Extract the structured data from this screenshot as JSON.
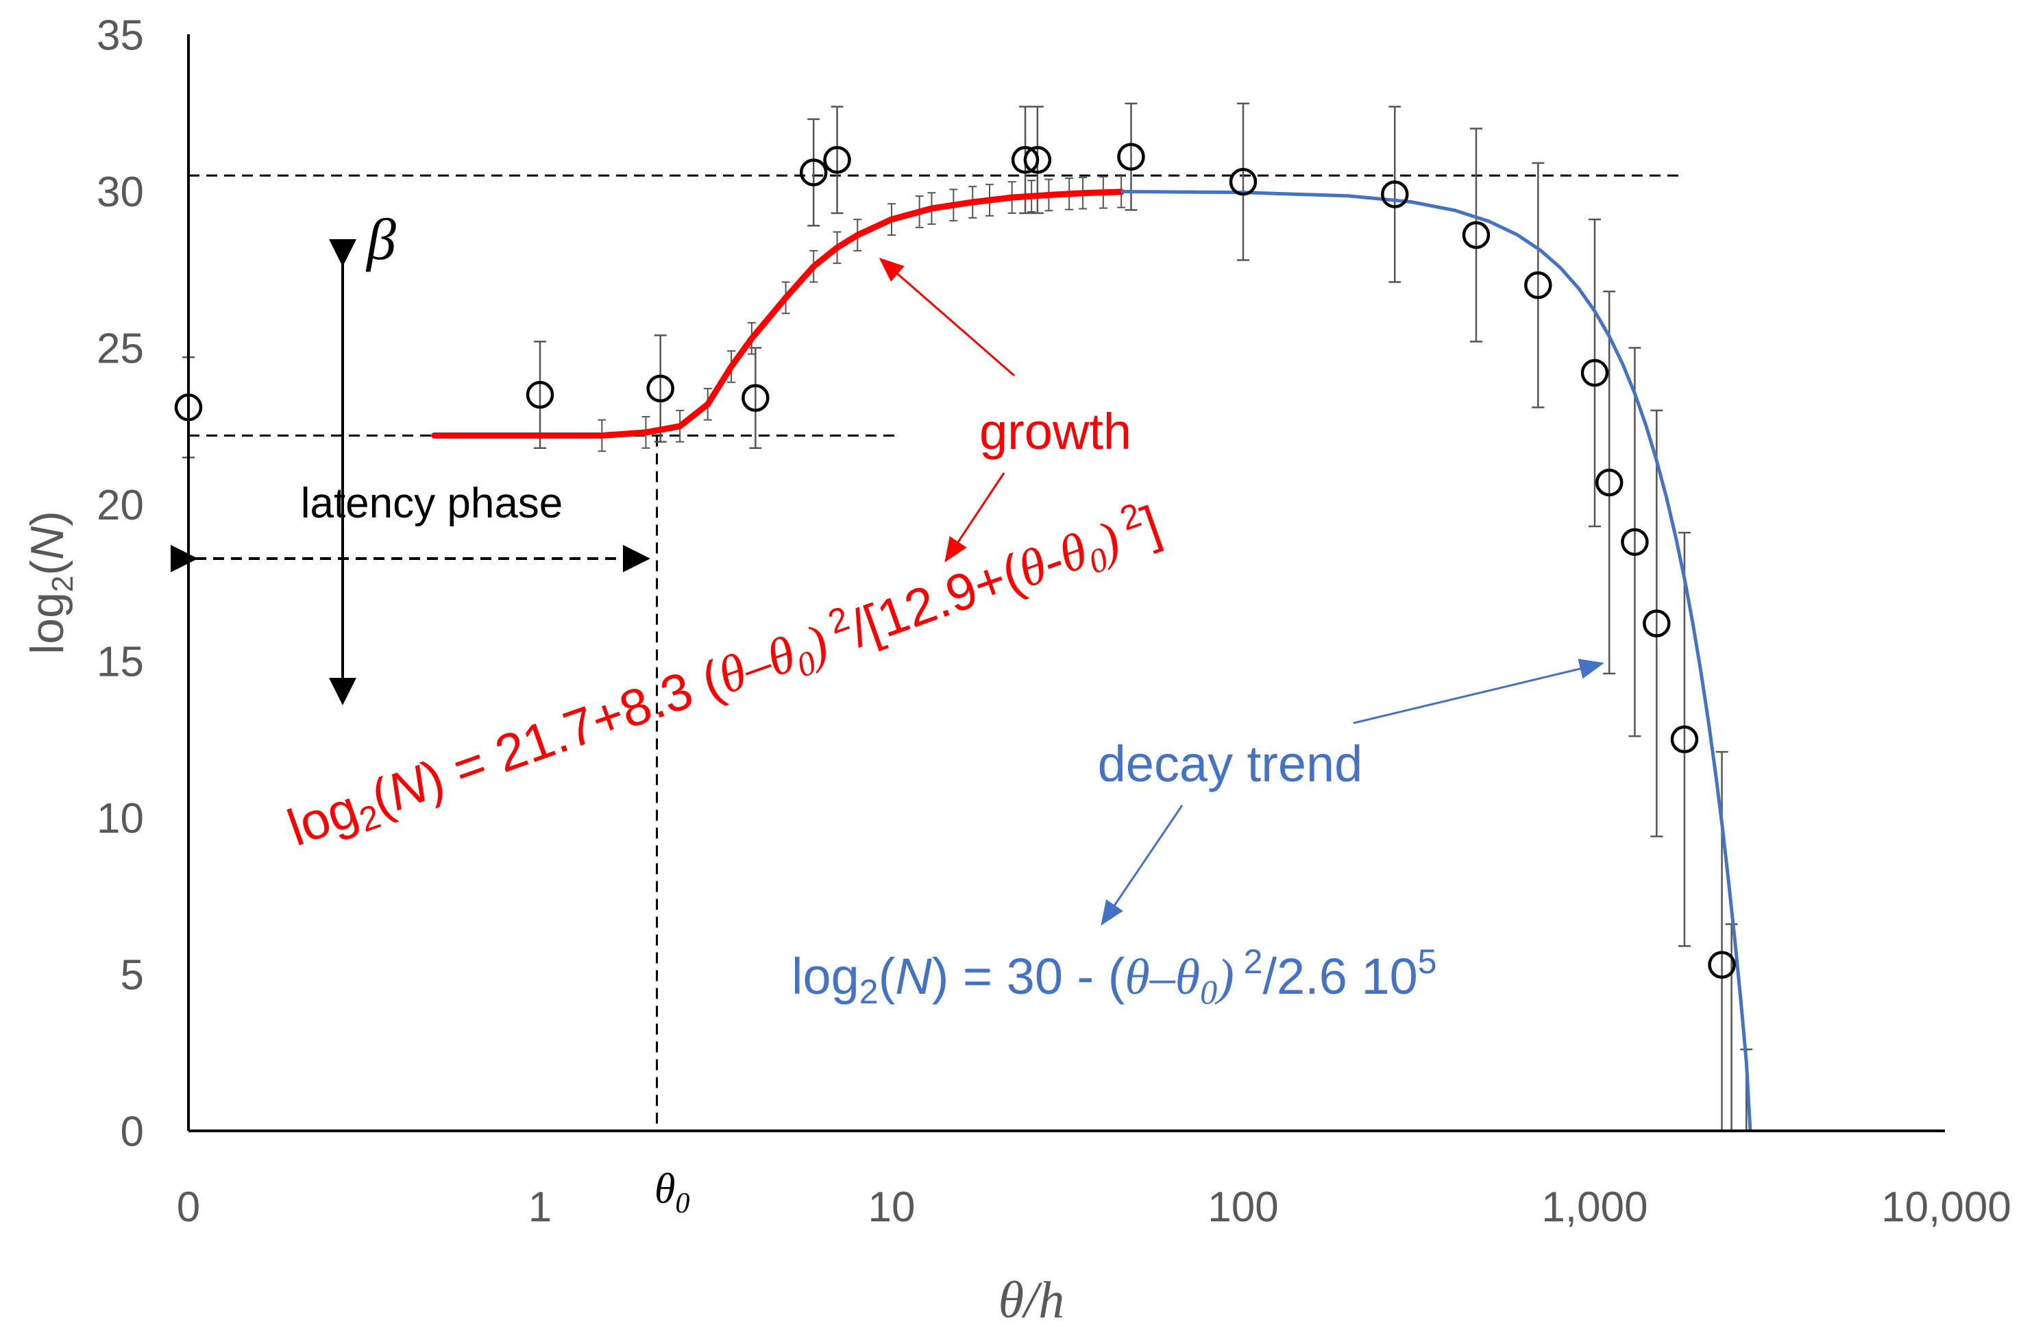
{
  "chart_data": {
    "type": "scatter",
    "xscale": "log",
    "x_note": "x = 0 plotted at left edge of log axis",
    "xlabel": "θ/h",
    "ylabel_base": "log",
    "ylabel_sub": "2",
    "ylabel_open": "(",
    "ylabel_var": "N",
    "ylabel_close": ")",
    "ylim": [
      0,
      35
    ],
    "xlim": [
      0.1,
      10000
    ],
    "y_ticks": [
      "0",
      "5",
      "10",
      "15",
      "20",
      "25",
      "30",
      "35"
    ],
    "y_tick_values": [
      0,
      5,
      10,
      15,
      20,
      25,
      30,
      35
    ],
    "x_ticks": [
      "0",
      "1",
      "10",
      "100",
      "1,000",
      "10,000"
    ],
    "x_tick_values": [
      0.1,
      1,
      10,
      100,
      1000,
      10000
    ],
    "theta0_value": 2.15,
    "theta0_label_base": "θ",
    "theta0_label_sub": "0",
    "beta_label": "β",
    "latency_label": "latency phase",
    "beta_low": 22.2,
    "beta_high": 30.5,
    "growth_label": "growth",
    "decay_label": "decay trend",
    "growth_equation": {
      "p1": "log",
      "p2": "2",
      "p3": "(",
      "p4": "N",
      "p5": ") = 21.7+8.3 (",
      "p6": "θ–θ",
      "p7": "0",
      "p8": ")",
      "p9": " 2",
      "p10": "/[12.9+(",
      "p11": "θ-θ",
      "p12": "0",
      "p13": ")",
      "p14": " 2",
      "p15": "]"
    },
    "decay_equation": {
      "p1": "log",
      "p2": "2",
      "p3": "(",
      "p4": "N",
      "p5": ") = 30 - (",
      "p6": "θ–θ",
      "p7": "0",
      "p8": ")",
      "p9": " 2",
      "p10": "/2.6 10",
      "p11": "5"
    },
    "points": [
      {
        "x": 0.1,
        "y": 23.1,
        "err": 1.6
      },
      {
        "x": 1,
        "y": 23.5,
        "err": 1.7
      },
      {
        "x": 2.2,
        "y": 23.7,
        "err": 1.7
      },
      {
        "x": 4.1,
        "y": 23.4,
        "err": 1.6
      },
      {
        "x": 6,
        "y": 30.6,
        "err": 1.7
      },
      {
        "x": 7,
        "y": 31.0,
        "err": 1.7
      },
      {
        "x": 24,
        "y": 31.0,
        "err": 1.7
      },
      {
        "x": 26,
        "y": 31.0,
        "err": 1.7
      },
      {
        "x": 48,
        "y": 31.1,
        "err": 1.7
      },
      {
        "x": 100,
        "y": 30.3,
        "err": 2.5
      },
      {
        "x": 270,
        "y": 29.9,
        "err": 2.8
      },
      {
        "x": 460,
        "y": 28.6,
        "err": 3.4
      },
      {
        "x": 690,
        "y": 27.0,
        "err": 3.9
      },
      {
        "x": 1000,
        "y": 24.2,
        "err": 4.9
      },
      {
        "x": 1100,
        "y": 20.7,
        "err": 6.1
      },
      {
        "x": 1300,
        "y": 18.8,
        "err": 6.2
      },
      {
        "x": 1500,
        "y": 16.2,
        "err": 6.8
      },
      {
        "x": 1800,
        "y": 12.5,
        "err": 6.6
      },
      {
        "x": 2300,
        "y": 5.3,
        "err": 6.8
      },
      {
        "x": 2450,
        "y": 3.3,
        "err": 3.3
      },
      {
        "x": 2700,
        "y": 1.3,
        "err": 1.3
      }
    ],
    "growth_curve": {
      "x": [
        0.5,
        1,
        1.5,
        2,
        2.5,
        3,
        3.5,
        4,
        5,
        6,
        7,
        8,
        10,
        13,
        17,
        22,
        28,
        35,
        45
      ],
      "y": [
        22.2,
        22.2,
        22.2,
        22.3,
        22.5,
        23.2,
        24.4,
        25.3,
        26.6,
        27.6,
        28.2,
        28.6,
        29.1,
        29.45,
        29.65,
        29.8,
        29.88,
        29.94,
        29.98
      ]
    },
    "growth_error_x": [
      1.5,
      2,
      2.5,
      3,
      3.5,
      4,
      5,
      6,
      7,
      8,
      10,
      12,
      13,
      15,
      17,
      19,
      22,
      25,
      28,
      32,
      35,
      40,
      45
    ],
    "decay_curve": {
      "x": [
        45,
        100,
        200,
        300,
        400,
        500,
        600,
        700,
        800,
        900,
        1000,
        1100,
        1200,
        1300,
        1400,
        1500,
        1600,
        1700,
        1800,
        1900,
        2000,
        2100,
        2200,
        2300,
        2400,
        2500,
        2600,
        2700,
        2770
      ],
      "y": [
        29.99,
        29.96,
        29.85,
        29.66,
        29.39,
        29.04,
        28.62,
        28.12,
        27.55,
        26.9,
        26.17,
        25.37,
        24.49,
        23.54,
        22.51,
        21.4,
        20.22,
        18.96,
        17.63,
        16.22,
        14.73,
        13.17,
        11.53,
        9.82,
        8.03,
        6.17,
        4.23,
        2.21,
        0
      ]
    },
    "colors": {
      "growth": "#ff0000",
      "decay": "#4472c4",
      "axis": "#000000",
      "tick_text": "#595959",
      "error_bar": "#555555"
    }
  }
}
